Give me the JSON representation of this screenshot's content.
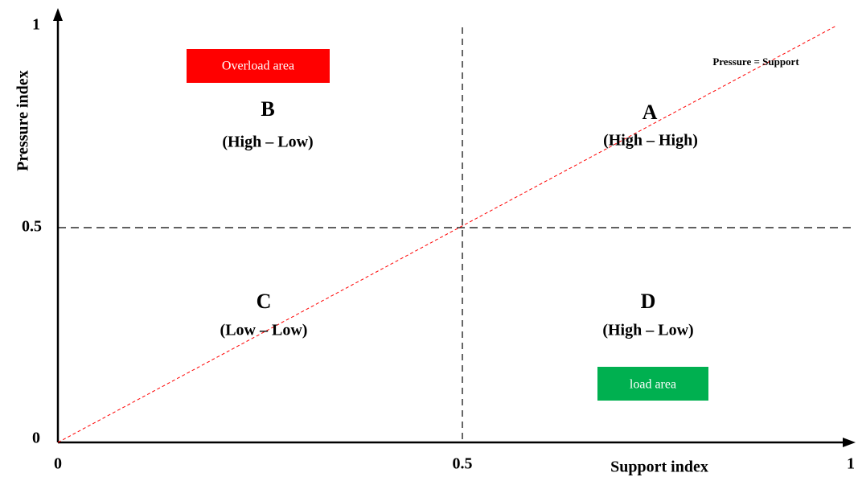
{
  "axes": {
    "x_label": "Support index",
    "y_label": "Pressure index",
    "x_ticks": [
      "0",
      "0.5",
      "1"
    ],
    "y_ticks": [
      "0",
      "0.5",
      "1"
    ]
  },
  "diagonal_label": "Pressure = Support",
  "quadrants": [
    {
      "letter": "A",
      "label": "(High – High)"
    },
    {
      "letter": "B",
      "label": "(High – Low)"
    },
    {
      "letter": "C",
      "label": "(Low – Low)"
    },
    {
      "letter": "D",
      "label": "(High – Low)"
    }
  ],
  "areas": [
    {
      "label": "Overload area",
      "color": "#ff0000"
    },
    {
      "label": "load area",
      "color": "#00b050"
    }
  ]
}
